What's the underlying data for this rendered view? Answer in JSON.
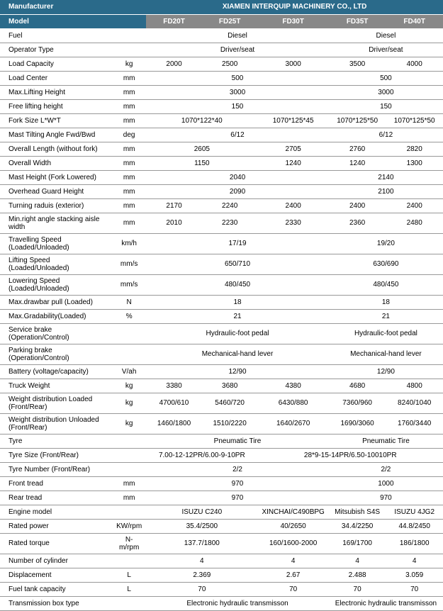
{
  "header": {
    "manufacturer_label": "Manufacturer",
    "manufacturer_value": "XIAMEN INTERQUIP MACHINERY CO., LTD",
    "model_label": "Model",
    "models": [
      "FD20T",
      "FD25T",
      "FD30T",
      "FD35T",
      "FD40T"
    ]
  },
  "rows": [
    {
      "label": "Fuel",
      "unit": "",
      "span": [
        {
          "cols": 3,
          "val": "Diesel"
        },
        {
          "cols": 2,
          "val": "Diesel"
        }
      ]
    },
    {
      "label": "Operator Type",
      "unit": "",
      "span": [
        {
          "cols": 3,
          "val": "Driver/seat"
        },
        {
          "cols": 2,
          "val": "Driver/seat"
        }
      ]
    },
    {
      "label": "Load Capacity",
      "unit": "kg",
      "cells": [
        "2000",
        "2500",
        "3000",
        "3500",
        "4000"
      ]
    },
    {
      "label": "Load Center",
      "unit": "mm",
      "span": [
        {
          "cols": 3,
          "val": "500"
        },
        {
          "cols": 2,
          "val": "500"
        }
      ]
    },
    {
      "label": "Max.Lifting Height",
      "unit": "mm",
      "span": [
        {
          "cols": 3,
          "val": "3000"
        },
        {
          "cols": 2,
          "val": "3000"
        }
      ]
    },
    {
      "label": "Free lifting height",
      "unit": "mm",
      "span": [
        {
          "cols": 3,
          "val": "150"
        },
        {
          "cols": 2,
          "val": "150"
        }
      ]
    },
    {
      "label": "Fork Size  L*W*T",
      "unit": "mm",
      "span": [
        {
          "cols": 2,
          "val": "1070*122*40"
        },
        {
          "cols": 1,
          "val": "1070*125*45"
        },
        {
          "cols": 1,
          "val": "1070*125*50"
        },
        {
          "cols": 1,
          "val": "1070*125*50"
        }
      ]
    },
    {
      "label": "Mast Tilting Angle  Fwd/Bwd",
      "unit": "deg",
      "span": [
        {
          "cols": 3,
          "val": "6/12"
        },
        {
          "cols": 2,
          "val": "6/12"
        }
      ]
    },
    {
      "label": "Overall Length (without fork)",
      "unit": "mm",
      "span": [
        {
          "cols": 2,
          "val": "2605"
        },
        {
          "cols": 1,
          "val": "2705"
        },
        {
          "cols": 1,
          "val": "2760"
        },
        {
          "cols": 1,
          "val": "2820"
        }
      ]
    },
    {
      "label": "Overall Width",
      "unit": "mm",
      "span": [
        {
          "cols": 2,
          "val": "1150"
        },
        {
          "cols": 1,
          "val": "1240"
        },
        {
          "cols": 1,
          "val": "1240"
        },
        {
          "cols": 1,
          "val": "1300"
        }
      ]
    },
    {
      "label": "Mast Height (Fork Lowered)",
      "unit": "mm",
      "span": [
        {
          "cols": 3,
          "val": "2040"
        },
        {
          "cols": 2,
          "val": "2140"
        }
      ]
    },
    {
      "label": "Overhead Guard Height",
      "unit": "mm",
      "span": [
        {
          "cols": 3,
          "val": "2090"
        },
        {
          "cols": 2,
          "val": "2100"
        }
      ]
    },
    {
      "label": "Turning raduis (exterior)",
      "unit": "mm",
      "cells": [
        "2170",
        "2240",
        "2400",
        "2400",
        "2400"
      ]
    },
    {
      "label": "Min.right angle stacking aisle width",
      "unit": "mm",
      "cells": [
        "2010",
        "2230",
        "2330",
        "2360",
        "2480"
      ]
    },
    {
      "label": "Travelling Speed (Loaded/Unloaded)",
      "unit": "km/h",
      "span": [
        {
          "cols": 3,
          "val": "17/19"
        },
        {
          "cols": 2,
          "val": "19/20"
        }
      ]
    },
    {
      "label": "Lifting Speed (Loaded/Unloaded)",
      "unit": "mm/s",
      "span": [
        {
          "cols": 3,
          "val": "650/710"
        },
        {
          "cols": 2,
          "val": "630/690"
        }
      ]
    },
    {
      "label": "Lowering Speed (Loaded/Unloaded)",
      "unit": "mm/s",
      "span": [
        {
          "cols": 3,
          "val": "480/450"
        },
        {
          "cols": 2,
          "val": "480/450"
        }
      ]
    },
    {
      "label": "Max.drawbar pull (Loaded)",
      "unit": "N",
      "span": [
        {
          "cols": 3,
          "val": "18"
        },
        {
          "cols": 2,
          "val": "18"
        }
      ]
    },
    {
      "label": "Max.Gradability(Loaded)",
      "unit": "%",
      "span": [
        {
          "cols": 3,
          "val": "21"
        },
        {
          "cols": 2,
          "val": "21"
        }
      ]
    },
    {
      "label": "Service brake (Operation/Control)",
      "unit": "",
      "span": [
        {
          "cols": 3,
          "val": "Hydraulic-foot pedal"
        },
        {
          "cols": 2,
          "val": "Hydraulic-foot pedal"
        }
      ]
    },
    {
      "label": "Parking brake (Operation/Control)",
      "unit": "",
      "span": [
        {
          "cols": 3,
          "val": "Mechanical-hand lever"
        },
        {
          "cols": 2,
          "val": "Mechanical-hand lever"
        }
      ]
    },
    {
      "label": "Battery (voltage/capacity)",
      "unit": "V/ah",
      "span": [
        {
          "cols": 3,
          "val": "12/90"
        },
        {
          "cols": 2,
          "val": "12/90"
        }
      ]
    },
    {
      "label": "Truck Weight",
      "unit": "kg",
      "cells": [
        "3380",
        "3680",
        "4380",
        "4680",
        "4800"
      ]
    },
    {
      "label": "Weight distribution Loaded (Front/Rear)",
      "unit": "kg",
      "cells": [
        "4700/610",
        "5460/720",
        "6430/880",
        "7360/960",
        "8240/1040"
      ]
    },
    {
      "label": "Weight distribution Unloaded (Front/Rear)",
      "unit": "kg",
      "cells": [
        "1460/1800",
        "1510/2220",
        "1640/2670",
        "1690/3060",
        "1760/3440"
      ]
    },
    {
      "label": "Tyre",
      "unit": "",
      "span": [
        {
          "cols": 3,
          "val": "Pneumatic Tire"
        },
        {
          "cols": 2,
          "val": "Pneumatic Tire"
        }
      ]
    },
    {
      "label": "Tyre Size  (Front/Rear)",
      "unit": "",
      "span": [
        {
          "cols": 2,
          "val": "7.00-12-12PR/6.00-9-10PR"
        },
        {
          "cols": 3,
          "val": "28*9-15-14PR/6.50-10010PR"
        }
      ]
    },
    {
      "label": "Tyre Number  (Front/Rear)",
      "unit": "",
      "span": [
        {
          "cols": 3,
          "val": "2/2"
        },
        {
          "cols": 2,
          "val": "2/2"
        }
      ]
    },
    {
      "label": "Front tread",
      "unit": "mm",
      "span": [
        {
          "cols": 3,
          "val": "970"
        },
        {
          "cols": 2,
          "val": "1000"
        }
      ]
    },
    {
      "label": "Rear tread",
      "unit": "mm",
      "span": [
        {
          "cols": 3,
          "val": "970"
        },
        {
          "cols": 2,
          "val": "970"
        }
      ]
    },
    {
      "label": "Engine model",
      "unit": "",
      "span": [
        {
          "cols": 2,
          "val": "ISUZU C240"
        },
        {
          "cols": 1,
          "val": "XINCHAI/C490BPG"
        },
        {
          "cols": 1,
          "val": "Mitsubish S4S"
        },
        {
          "cols": 1,
          "val": "ISUZU 4JG2"
        }
      ]
    },
    {
      "label": "Rated power",
      "unit": "KW/rpm",
      "span": [
        {
          "cols": 2,
          "val": "35.4/2500"
        },
        {
          "cols": 1,
          "val": "40/2650"
        },
        {
          "cols": 1,
          "val": "34.4/2250"
        },
        {
          "cols": 1,
          "val": "44.8/2450"
        }
      ]
    },
    {
      "label": "Rated torque",
      "unit": "N-m/rpm",
      "span": [
        {
          "cols": 2,
          "val": "137.7/1800"
        },
        {
          "cols": 1,
          "val": "160/1600-2000"
        },
        {
          "cols": 1,
          "val": "169/1700"
        },
        {
          "cols": 1,
          "val": "186/1800"
        }
      ]
    },
    {
      "label": "Number of cylinder",
      "unit": "",
      "span": [
        {
          "cols": 2,
          "val": "4"
        },
        {
          "cols": 1,
          "val": "4"
        },
        {
          "cols": 1,
          "val": "4"
        },
        {
          "cols": 1,
          "val": "4"
        }
      ]
    },
    {
      "label": "Displacement",
      "unit": "L",
      "span": [
        {
          "cols": 2,
          "val": "2.369"
        },
        {
          "cols": 1,
          "val": "2.67"
        },
        {
          "cols": 1,
          "val": "2.488"
        },
        {
          "cols": 1,
          "val": "3.059"
        }
      ]
    },
    {
      "label": "Fuel tank capacity",
      "unit": "L",
      "span": [
        {
          "cols": 2,
          "val": "70"
        },
        {
          "cols": 1,
          "val": "70"
        },
        {
          "cols": 1,
          "val": "70"
        },
        {
          "cols": 1,
          "val": "70"
        }
      ]
    },
    {
      "label": "Transmission box type",
      "unit": "",
      "span": [
        {
          "cols": 3,
          "val": "Electronic hydraulic transmisson"
        },
        {
          "cols": 2,
          "val": "Electronic hydraulic transmisson"
        }
      ]
    }
  ]
}
